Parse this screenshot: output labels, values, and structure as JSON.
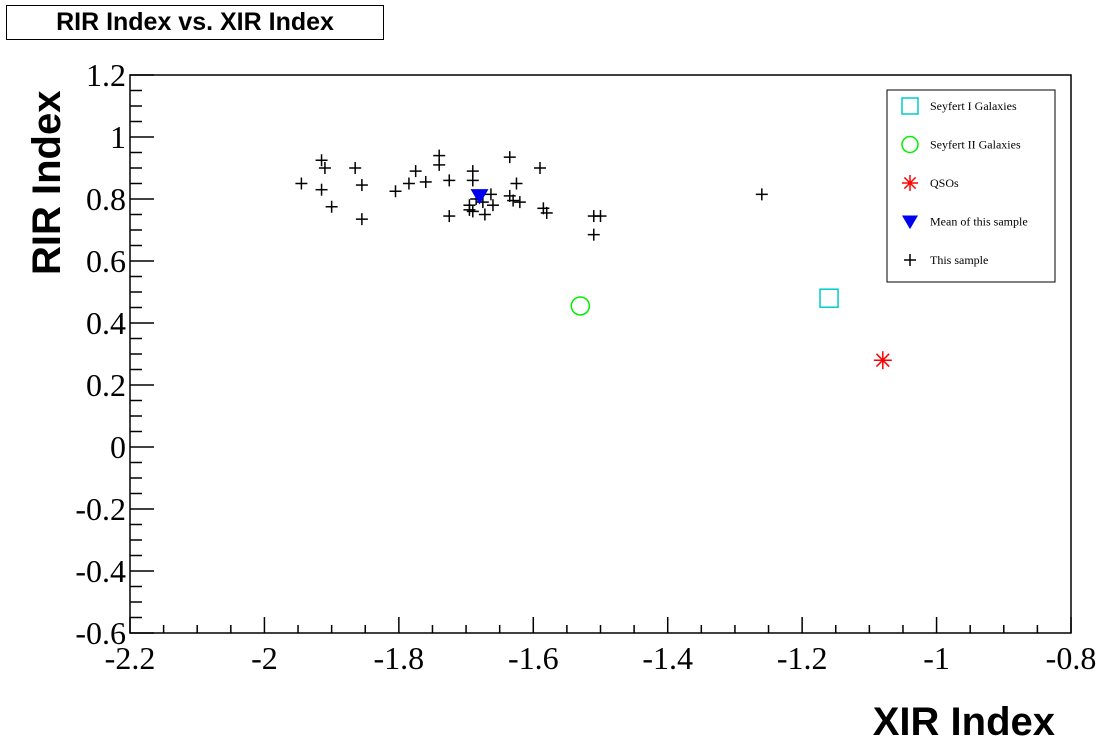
{
  "chart_data": {
    "type": "scatter",
    "title": "RIR Index vs. XIR Index",
    "xlabel": "XIR Index",
    "ylabel": "RIR Index",
    "xlim": [
      -2.2,
      -0.8
    ],
    "ylim": [
      -0.6,
      1.2
    ],
    "x_ticks": [
      -2.2,
      -2,
      -1.8,
      -1.6,
      -1.4,
      -1.2,
      -1,
      -0.8
    ],
    "y_ticks": [
      -0.6,
      -0.4,
      -0.2,
      0,
      0.2,
      0.4,
      0.6,
      0.8,
      1,
      1.2
    ],
    "x_tick_labels": [
      "-2.2",
      "-2",
      "-1.8",
      "-1.6",
      "-1.4",
      "-1.2",
      "-1",
      "-0.8"
    ],
    "y_tick_labels": [
      "-0.6",
      "-0.4",
      "-0.2",
      "0",
      "0.2",
      "0.4",
      "0.6",
      "0.8",
      "1",
      "1.2"
    ],
    "grid": false,
    "legend_position": "top-right",
    "series": [
      {
        "name": "Seyfert I Galaxies",
        "marker": "open-square",
        "color": "#00cccc",
        "points": [
          [
            -1.16,
            0.48
          ]
        ]
      },
      {
        "name": "Seyfert II Galaxies",
        "marker": "open-circle",
        "color": "#00ee00",
        "points": [
          [
            -1.53,
            0.455
          ]
        ]
      },
      {
        "name": "QSOs",
        "marker": "asterisk",
        "color": "#ff0000",
        "points": [
          [
            -1.08,
            0.28
          ]
        ]
      },
      {
        "name": "Mean of this sample",
        "marker": "filled-down-triangle",
        "color": "#0000ee",
        "points": [
          [
            -1.68,
            0.81
          ]
        ]
      },
      {
        "name": "This sample",
        "marker": "plus",
        "color": "#000000",
        "points": [
          [
            -1.945,
            0.85
          ],
          [
            -1.915,
            0.925
          ],
          [
            -1.91,
            0.9
          ],
          [
            -1.915,
            0.83
          ],
          [
            -1.9,
            0.775
          ],
          [
            -1.865,
            0.9
          ],
          [
            -1.855,
            0.845
          ],
          [
            -1.855,
            0.735
          ],
          [
            -1.805,
            0.825
          ],
          [
            -1.785,
            0.85
          ],
          [
            -1.775,
            0.89
          ],
          [
            -1.76,
            0.855
          ],
          [
            -1.74,
            0.94
          ],
          [
            -1.74,
            0.91
          ],
          [
            -1.725,
            0.86
          ],
          [
            -1.725,
            0.745
          ],
          [
            -1.69,
            0.89
          ],
          [
            -1.69,
            0.86
          ],
          [
            -1.695,
            0.78
          ],
          [
            -1.69,
            0.76
          ],
          [
            -1.695,
            0.765
          ],
          [
            -1.685,
            0.8
          ],
          [
            -1.675,
            0.79
          ],
          [
            -1.672,
            0.75
          ],
          [
            -1.663,
            0.815
          ],
          [
            -1.66,
            0.78
          ],
          [
            -1.635,
            0.935
          ],
          [
            -1.635,
            0.81
          ],
          [
            -1.63,
            0.795
          ],
          [
            -1.625,
            0.85
          ],
          [
            -1.62,
            0.79
          ],
          [
            -1.59,
            0.9
          ],
          [
            -1.585,
            0.77
          ],
          [
            -1.58,
            0.755
          ],
          [
            -1.51,
            0.745
          ],
          [
            -1.51,
            0.685
          ],
          [
            -1.5,
            0.745
          ],
          [
            -1.26,
            0.815
          ]
        ]
      }
    ]
  }
}
